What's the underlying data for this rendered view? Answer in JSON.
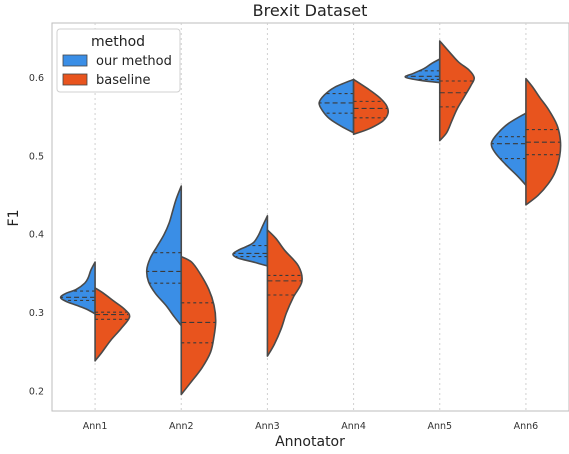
{
  "chart_data": {
    "type": "violin",
    "title": "Brexit Dataset",
    "xlabel": "Annotator",
    "ylabel": "F1",
    "ylim": [
      0.175,
      0.67
    ],
    "yticks": [
      0.2,
      0.3,
      0.4,
      0.5,
      0.6
    ],
    "ytick_labels": [
      "0.2",
      "0.3",
      "0.4",
      "0.5",
      "0.6"
    ],
    "grid_x": true,
    "categories": [
      "Ann1",
      "Ann2",
      "Ann3",
      "Ann4",
      "Ann5",
      "Ann6"
    ],
    "legend": {
      "title": "method",
      "placement": "top-left"
    },
    "series": [
      {
        "name": "our method",
        "color": "#3a8ee6",
        "violins": [
          {
            "min": 0.299,
            "max": 0.365,
            "quartiles": [
              0.316,
              0.32,
              0.328
            ],
            "profile": [
              [
                0.299,
                0.0
              ],
              [
                0.305,
                0.25
              ],
              [
                0.31,
                0.55
              ],
              [
                0.315,
                0.85
              ],
              [
                0.32,
                1.0
              ],
              [
                0.325,
                0.85
              ],
              [
                0.33,
                0.55
              ],
              [
                0.338,
                0.3
              ],
              [
                0.345,
                0.2
              ],
              [
                0.355,
                0.12
              ],
              [
                0.365,
                0.0
              ]
            ]
          },
          {
            "min": 0.284,
            "max": 0.462,
            "quartiles": [
              0.338,
              0.353,
              0.377
            ],
            "profile": [
              [
                0.284,
                0.0
              ],
              [
                0.295,
                0.2
              ],
              [
                0.31,
                0.45
              ],
              [
                0.325,
                0.75
              ],
              [
                0.34,
                0.95
              ],
              [
                0.355,
                1.0
              ],
              [
                0.37,
                0.9
              ],
              [
                0.385,
                0.7
              ],
              [
                0.4,
                0.5
              ],
              [
                0.415,
                0.35
              ],
              [
                0.43,
                0.25
              ],
              [
                0.445,
                0.15
              ],
              [
                0.462,
                0.0
              ]
            ]
          },
          {
            "min": 0.36,
            "max": 0.424,
            "quartiles": [
              0.372,
              0.376,
              0.386
            ],
            "profile": [
              [
                0.36,
                0.0
              ],
              [
                0.365,
                0.4
              ],
              [
                0.37,
                0.85
              ],
              [
                0.375,
                1.0
              ],
              [
                0.38,
                0.85
              ],
              [
                0.385,
                0.6
              ],
              [
                0.39,
                0.4
              ],
              [
                0.4,
                0.25
              ],
              [
                0.41,
                0.15
              ],
              [
                0.424,
                0.0
              ]
            ]
          },
          {
            "min": 0.53,
            "max": 0.598,
            "quartiles": [
              0.555,
              0.568,
              0.58
            ],
            "profile": [
              [
                0.53,
                0.0
              ],
              [
                0.538,
                0.35
              ],
              [
                0.548,
                0.7
              ],
              [
                0.558,
                0.9
              ],
              [
                0.568,
                1.0
              ],
              [
                0.578,
                0.85
              ],
              [
                0.588,
                0.55
              ],
              [
                0.598,
                0.0
              ]
            ]
          },
          {
            "min": 0.594,
            "max": 0.624,
            "quartiles": [
              0.598,
              0.602,
              0.609
            ],
            "profile": [
              [
                0.594,
                0.0
              ],
              [
                0.597,
                0.6
              ],
              [
                0.601,
                1.0
              ],
              [
                0.606,
                0.75
              ],
              [
                0.612,
                0.45
              ],
              [
                0.618,
                0.25
              ],
              [
                0.624,
                0.0
              ]
            ]
          },
          {
            "min": 0.463,
            "max": 0.555,
            "quartiles": [
              0.497,
              0.516,
              0.525
            ],
            "profile": [
              [
                0.463,
                0.0
              ],
              [
                0.475,
                0.25
              ],
              [
                0.49,
                0.6
              ],
              [
                0.505,
                0.9
              ],
              [
                0.517,
                1.0
              ],
              [
                0.53,
                0.8
              ],
              [
                0.542,
                0.5
              ],
              [
                0.555,
                0.0
              ]
            ]
          }
        ]
      },
      {
        "name": "baseline",
        "color": "#e8541e",
        "violins": [
          {
            "min": 0.239,
            "max": 0.332,
            "quartiles": [
              0.292,
              0.298,
              0.301
            ],
            "profile": [
              [
                0.239,
                0.0
              ],
              [
                0.25,
                0.2
              ],
              [
                0.265,
                0.45
              ],
              [
                0.28,
                0.75
              ],
              [
                0.295,
                1.0
              ],
              [
                0.305,
                0.85
              ],
              [
                0.315,
                0.55
              ],
              [
                0.325,
                0.25
              ],
              [
                0.332,
                0.0
              ]
            ]
          },
          {
            "min": 0.196,
            "max": 0.372,
            "quartiles": [
              0.262,
              0.288,
              0.313
            ],
            "profile": [
              [
                0.196,
                0.0
              ],
              [
                0.21,
                0.25
              ],
              [
                0.23,
                0.6
              ],
              [
                0.25,
                0.85
              ],
              [
                0.27,
                0.95
              ],
              [
                0.29,
                1.0
              ],
              [
                0.31,
                0.95
              ],
              [
                0.33,
                0.8
              ],
              [
                0.35,
                0.55
              ],
              [
                0.365,
                0.3
              ],
              [
                0.372,
                0.0
              ]
            ]
          },
          {
            "min": 0.245,
            "max": 0.406,
            "quartiles": [
              0.323,
              0.341,
              0.348
            ],
            "profile": [
              [
                0.245,
                0.0
              ],
              [
                0.26,
                0.2
              ],
              [
                0.28,
                0.4
              ],
              [
                0.3,
                0.55
              ],
              [
                0.32,
                0.75
              ],
              [
                0.34,
                1.0
              ],
              [
                0.36,
                0.9
              ],
              [
                0.38,
                0.5
              ],
              [
                0.395,
                0.25
              ],
              [
                0.406,
                0.0
              ]
            ]
          },
          {
            "min": 0.528,
            "max": 0.598,
            "quartiles": [
              0.549,
              0.561,
              0.57
            ],
            "profile": [
              [
                0.528,
                0.0
              ],
              [
                0.535,
                0.45
              ],
              [
                0.545,
                0.85
              ],
              [
                0.555,
                1.0
              ],
              [
                0.565,
                0.95
              ],
              [
                0.575,
                0.75
              ],
              [
                0.585,
                0.45
              ],
              [
                0.598,
                0.0
              ]
            ]
          },
          {
            "min": 0.52,
            "max": 0.647,
            "quartiles": [
              0.563,
              0.581,
              0.596
            ],
            "profile": [
              [
                0.52,
                0.0
              ],
              [
                0.53,
                0.2
              ],
              [
                0.545,
                0.35
              ],
              [
                0.56,
                0.5
              ],
              [
                0.575,
                0.7
              ],
              [
                0.59,
                0.9
              ],
              [
                0.6,
                1.0
              ],
              [
                0.61,
                0.85
              ],
              [
                0.62,
                0.55
              ],
              [
                0.632,
                0.3
              ],
              [
                0.647,
                0.0
              ]
            ]
          },
          {
            "min": 0.438,
            "max": 0.599,
            "quartiles": [
              0.502,
              0.518,
              0.534
            ],
            "profile": [
              [
                0.438,
                0.0
              ],
              [
                0.45,
                0.35
              ],
              [
                0.465,
                0.65
              ],
              [
                0.48,
                0.85
              ],
              [
                0.5,
                0.98
              ],
              [
                0.52,
                1.0
              ],
              [
                0.54,
                0.9
              ],
              [
                0.56,
                0.65
              ],
              [
                0.575,
                0.4
              ],
              [
                0.588,
                0.2
              ],
              [
                0.599,
                0.0
              ]
            ]
          }
        ]
      }
    ]
  }
}
